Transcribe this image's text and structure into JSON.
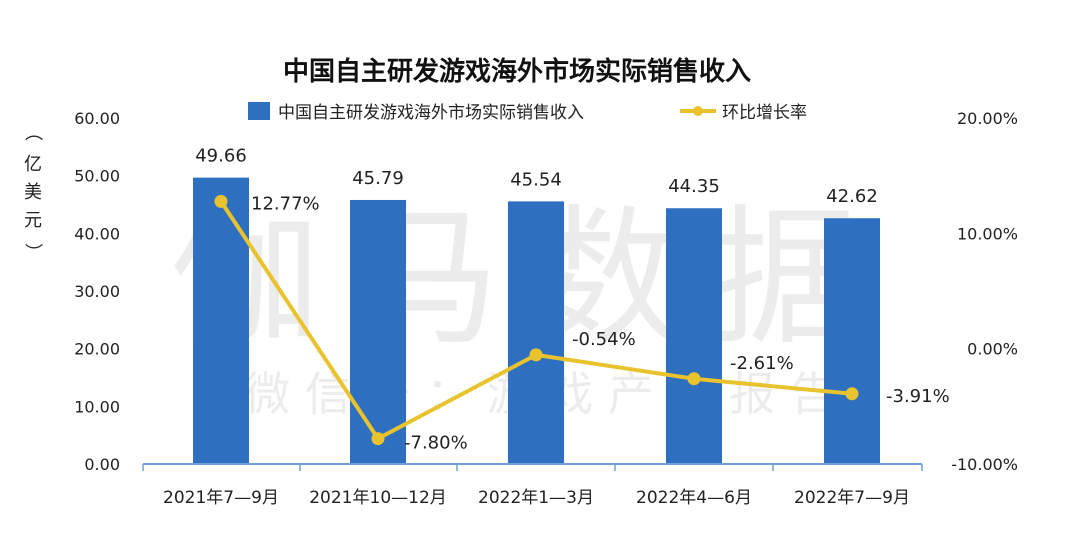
{
  "colors": {
    "bar": "#2E6FBF",
    "line": "#E8C32E",
    "axis": "#6E9FD6"
  },
  "watermark": {
    "main": "伽马数据",
    "sub": "微 信 号 ： 游 戏 产 业 报 告"
  },
  "chart_data": {
    "type": "bar",
    "title": "中国自主研发游戏海外市场实际销售收入",
    "categories": [
      "2021年7—9月",
      "2021年10—12月",
      "2022年1—3月",
      "2022年4—6月",
      "2022年7—9月"
    ],
    "series": [
      {
        "name": "中国自主研发游戏海外市场实际销售收入",
        "type": "bar",
        "axis": "left",
        "values": [
          49.66,
          45.79,
          45.54,
          44.35,
          42.62
        ],
        "labels": [
          "49.66",
          "45.79",
          "45.54",
          "44.35",
          "42.62"
        ]
      },
      {
        "name": "环比增长率",
        "type": "line",
        "axis": "right",
        "values": [
          12.77,
          -7.8,
          -0.54,
          -2.61,
          -3.91
        ],
        "labels": [
          "12.77%",
          "-7.80%",
          "-0.54%",
          "-2.61%",
          "-3.91%"
        ]
      }
    ],
    "ylabel": [
      "（",
      "亿",
      "美",
      "元",
      "）"
    ],
    "ylim": [
      0,
      60
    ],
    "yticks": [
      "0.00",
      "10.00",
      "20.00",
      "30.00",
      "40.00",
      "50.00",
      "60.00"
    ],
    "y2lim": [
      -10,
      20
    ],
    "y2ticks": [
      "-10.00%",
      "0.00%",
      "10.00%",
      "20.00%"
    ],
    "grid": false,
    "legend": "top"
  }
}
